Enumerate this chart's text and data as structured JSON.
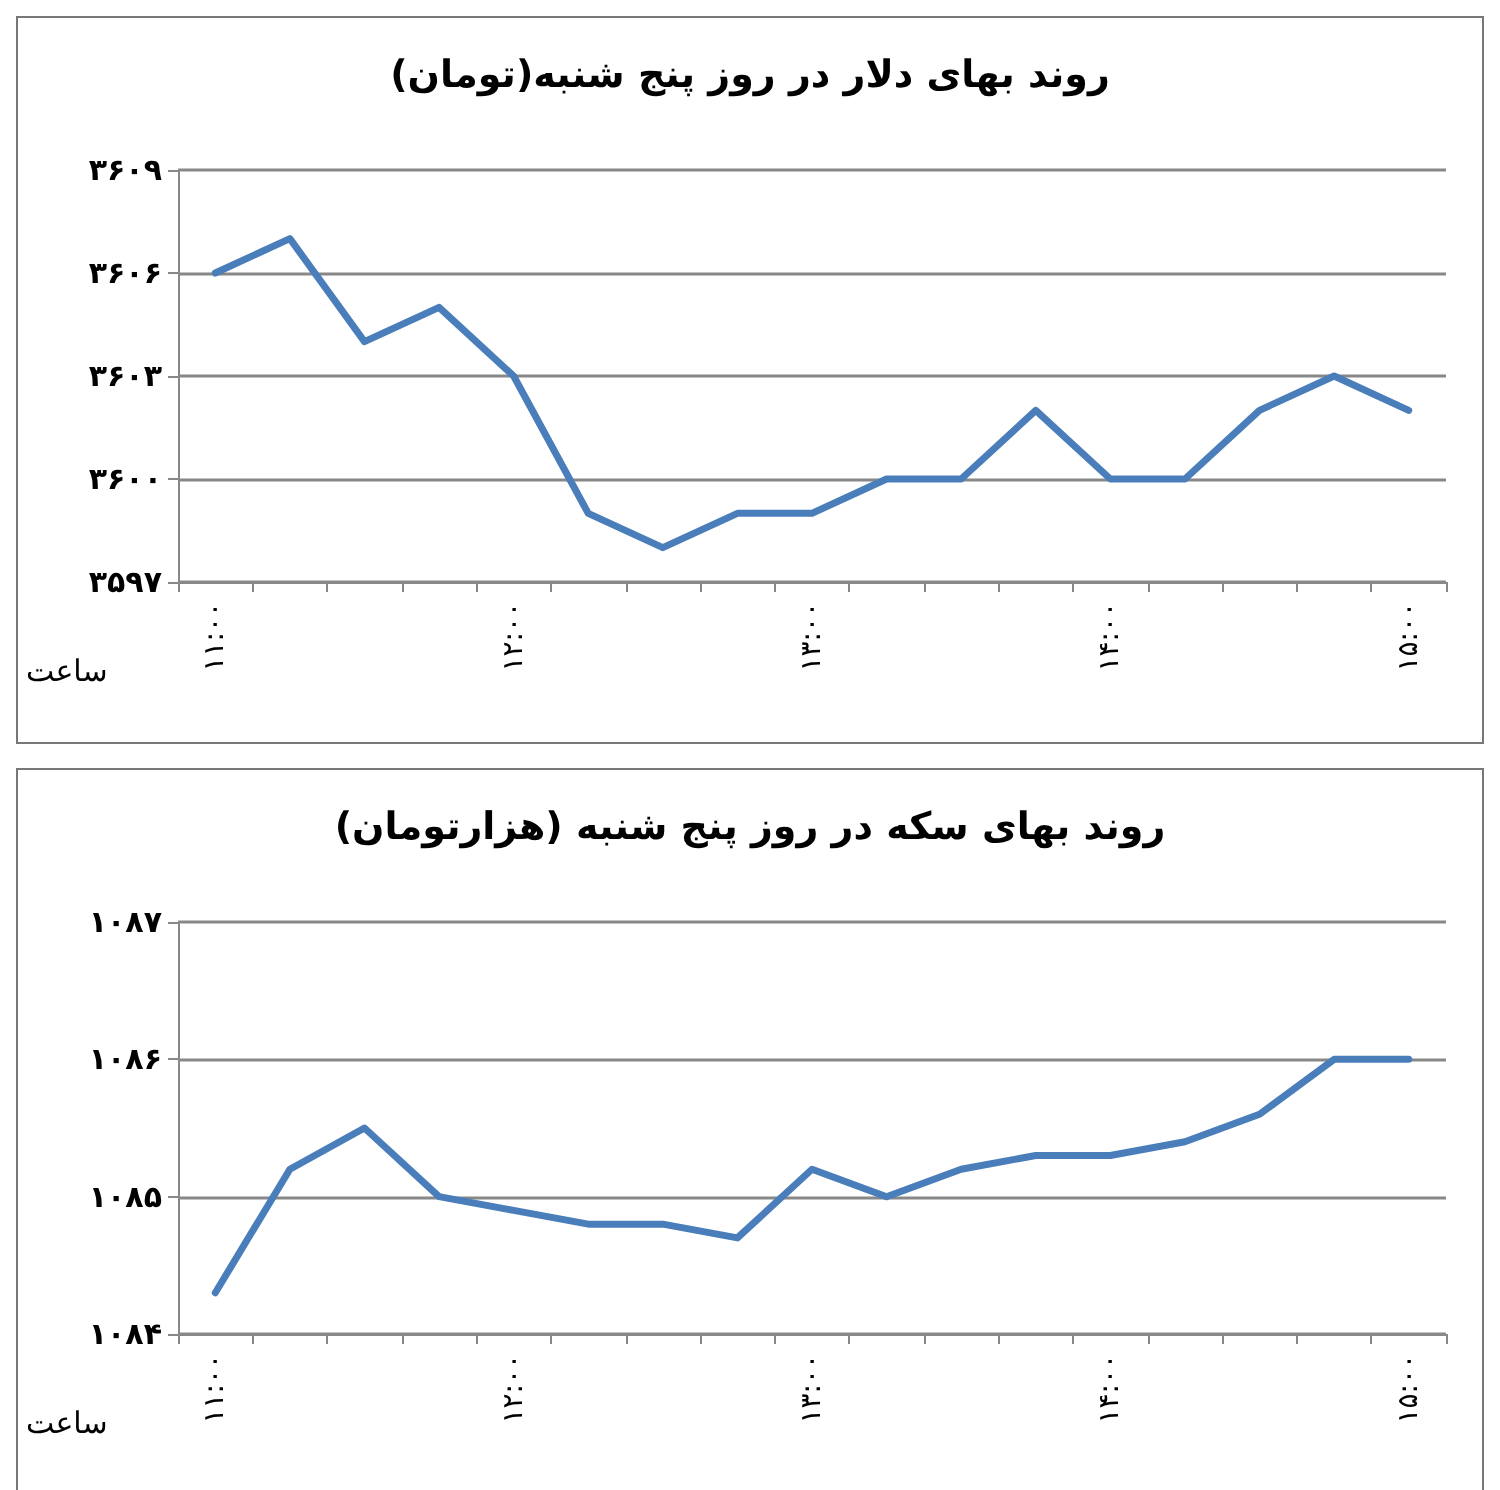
{
  "chart_data": [
    {
      "type": "line",
      "title": "روند بهای دلار در روز پنج شنبه(تومان)",
      "xlabel": "ساعت",
      "categories": [
        "۱۱:۰۰",
        null,
        null,
        null,
        "۱۲:۰۰",
        null,
        null,
        null,
        "۱۳:۰۰",
        null,
        null,
        null,
        "۱۴:۰۰",
        null,
        null,
        null,
        "۱۵:۰۰"
      ],
      "series": [
        {
          "color": "#4a7ebb",
          "values": [
            3606,
            3607,
            3604,
            3605,
            3603,
            3599,
            3598,
            3599,
            3599,
            3600,
            3600,
            3602,
            3600,
            3600,
            3602,
            3603,
            3602
          ]
        }
      ],
      "ylim": [
        3597,
        3609
      ],
      "yticks": [
        {
          "value": 3597,
          "label": "۳۵۹۷"
        },
        {
          "value": 3600,
          "label": "۳۶۰۰"
        },
        {
          "value": 3603,
          "label": "۳۶۰۳"
        },
        {
          "value": 3606,
          "label": "۳۶۰۶"
        },
        {
          "value": 3609,
          "label": "۳۶۰۹"
        }
      ],
      "grid": "y",
      "marker": "none",
      "line_style": "solid"
    },
    {
      "type": "line",
      "title": "روند بهای سکه در روز پنج شنبه (هزارتومان)",
      "xlabel": "ساعت",
      "categories": [
        "۱۱:۰۰",
        null,
        null,
        null,
        "۱۲:۰۰",
        null,
        null,
        null,
        "۱۳:۰۰",
        null,
        null,
        null,
        "۱۴:۰۰",
        null,
        null,
        null,
        "۱۵:۰۰"
      ],
      "series": [
        {
          "color": "#4a7ebb",
          "values": [
            1084.3,
            1085.2,
            1085.5,
            1085.0,
            1084.9,
            1084.8,
            1084.8,
            1084.7,
            1085.2,
            1085.0,
            1085.2,
            1085.3,
            1085.3,
            1085.4,
            1085.6,
            1086.0,
            1086.0
          ]
        }
      ],
      "ylim": [
        1084,
        1087
      ],
      "yticks": [
        {
          "value": 1084,
          "label": "۱۰۸۴"
        },
        {
          "value": 1085,
          "label": "۱۰۸۵"
        },
        {
          "value": 1086,
          "label": "۱۰۸۶"
        },
        {
          "value": 1087,
          "label": "۱۰۸۷"
        }
      ],
      "grid": "y",
      "marker": "none",
      "line_style": "solid"
    }
  ]
}
